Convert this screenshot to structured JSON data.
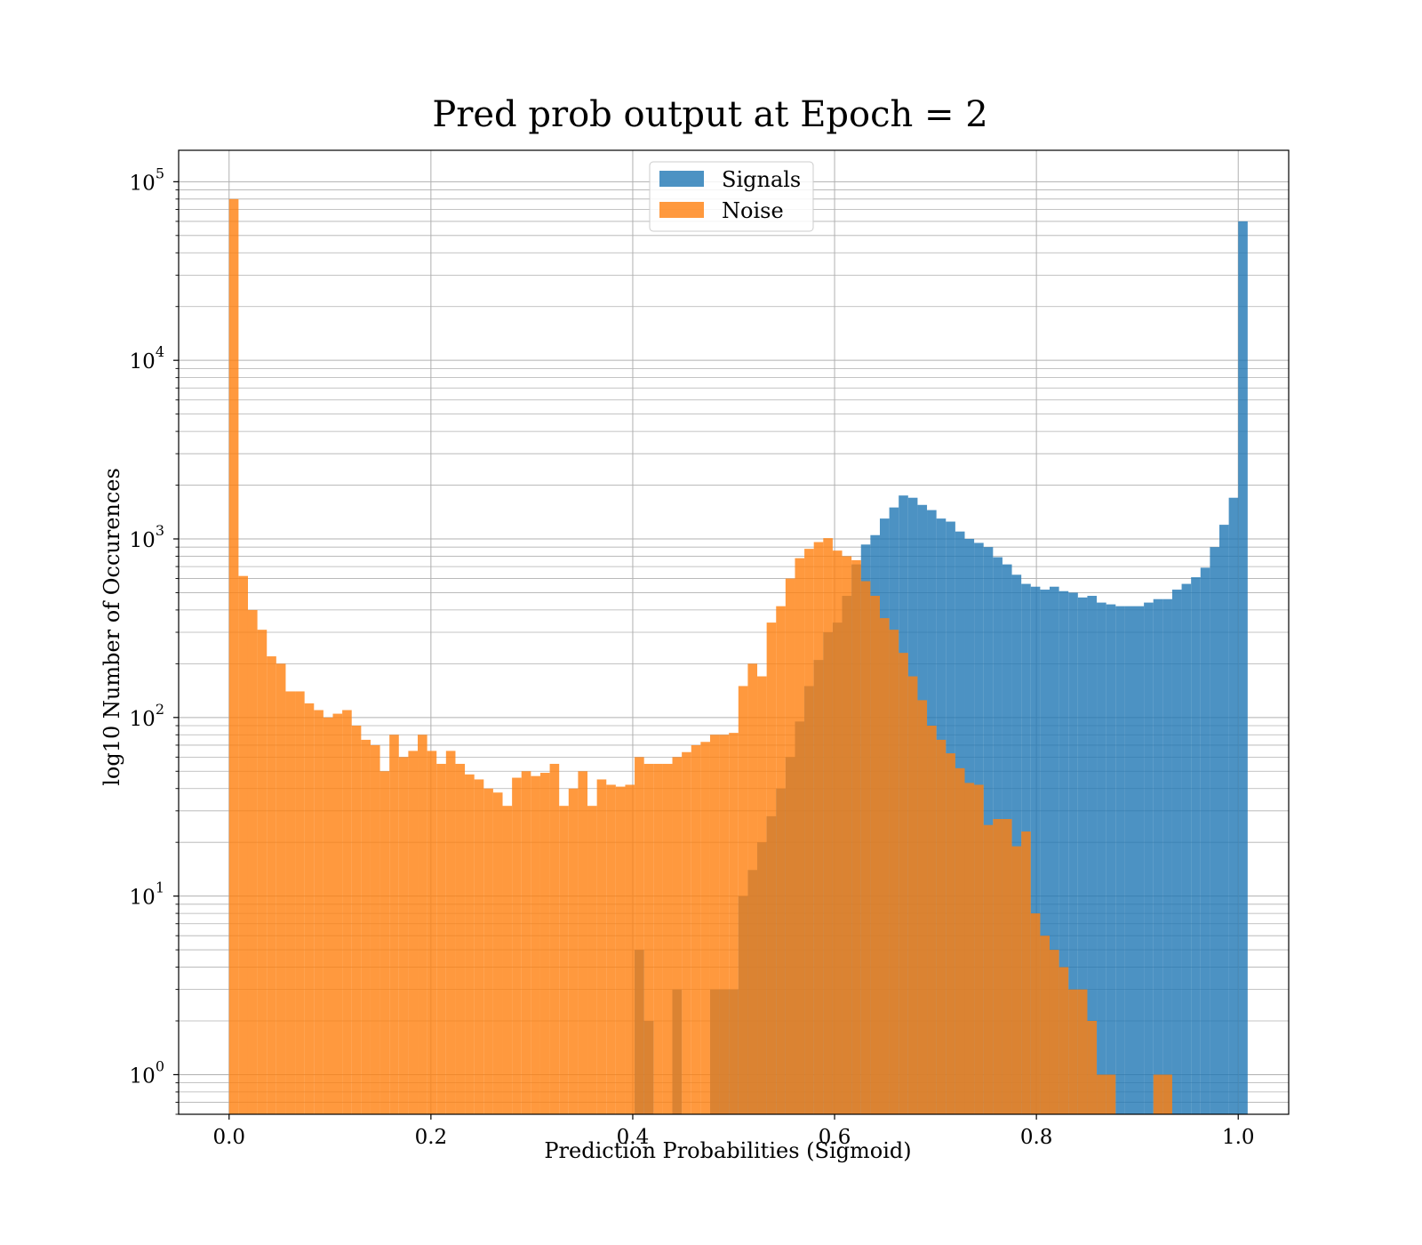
{
  "chart_data": {
    "type": "histogram",
    "title": "Pred prob output at Epoch = 2",
    "xlabel": "Prediction Probabilities (Sigmoid)",
    "ylabel": "log10 Number of Occurences",
    "yscale": "log",
    "xlim": [
      -0.05,
      1.05
    ],
    "ylim": [
      0.6,
      150000
    ],
    "x_ticks": [
      "0.0",
      "0.2",
      "0.4",
      "0.6",
      "0.8",
      "1.0"
    ],
    "y_ticks": [
      {
        "base": "10",
        "exp": "0"
      },
      {
        "base": "10",
        "exp": "1"
      },
      {
        "base": "10",
        "exp": "2"
      },
      {
        "base": "10",
        "exp": "3"
      },
      {
        "base": "10",
        "exp": "4"
      },
      {
        "base": "10",
        "exp": "5"
      }
    ],
    "grid": "on (major and minor)",
    "legend_position": "upper center",
    "bin_range": [
      0.0,
      1.0
    ],
    "bin_count": 107,
    "series": [
      {
        "name": "Signals",
        "color": "#1f77b4",
        "counts": [
          0,
          0,
          0,
          0,
          0,
          0,
          0,
          0,
          0,
          0,
          0,
          0,
          0,
          0,
          0,
          0,
          0,
          0,
          0,
          0,
          0,
          0,
          0,
          0,
          0,
          0,
          0,
          0,
          0,
          0,
          0,
          0,
          0,
          0,
          0,
          0,
          0,
          0,
          0,
          0,
          0,
          0,
          0,
          5,
          2,
          0,
          0,
          3,
          0,
          0,
          0,
          3,
          3,
          3,
          10,
          14,
          20,
          28,
          40,
          60,
          95,
          150,
          210,
          300,
          340,
          480,
          720,
          930,
          1050,
          1300,
          1500,
          1750,
          1700,
          1550,
          1450,
          1300,
          1250,
          1100,
          1000,
          950,
          900,
          790,
          720,
          630,
          560,
          540,
          520,
          540,
          510,
          500,
          470,
          480,
          440,
          430,
          420,
          420,
          420,
          440,
          460,
          460,
          520,
          560,
          610,
          690,
          900,
          1200,
          1700,
          60000
        ]
      },
      {
        "name": "Noise",
        "color": "#ff7f0e",
        "counts": [
          80000,
          620,
          400,
          310,
          220,
          200,
          140,
          140,
          120,
          110,
          100,
          105,
          110,
          90,
          75,
          70,
          50,
          80,
          60,
          65,
          80,
          65,
          55,
          65,
          55,
          48,
          45,
          40,
          38,
          32,
          46,
          50,
          47,
          49,
          55,
          32,
          40,
          50,
          32,
          45,
          42,
          41,
          42,
          60,
          55,
          55,
          55,
          60,
          64,
          70,
          73,
          80,
          80,
          82,
          150,
          200,
          170,
          340,
          420,
          600,
          780,
          880,
          960,
          1010,
          860,
          800,
          760,
          580,
          480,
          360,
          310,
          230,
          170,
          125,
          90,
          75,
          63,
          52,
          43,
          42,
          25,
          27,
          27,
          19,
          23,
          8,
          6,
          5,
          4,
          3,
          3,
          2,
          1,
          1,
          0,
          0,
          0,
          0,
          1,
          1,
          0,
          0,
          0,
          0,
          0,
          0,
          0
        ]
      }
    ]
  }
}
